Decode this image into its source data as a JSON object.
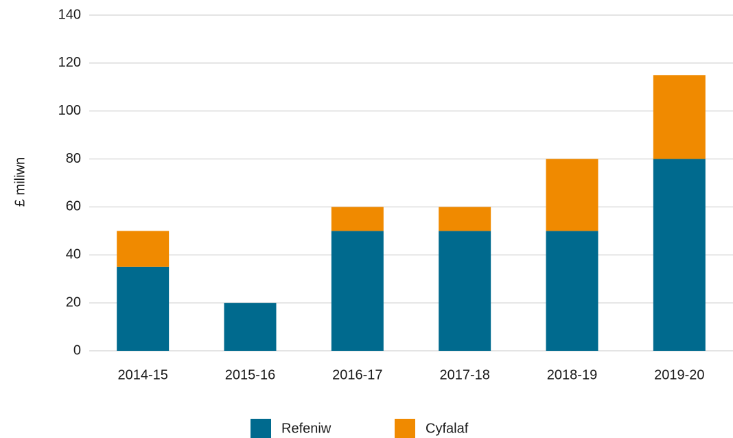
{
  "chart_data": {
    "type": "stacked_bar",
    "y_label": "£ miliwn",
    "categories": [
      "2014-15",
      "2015-16",
      "2016-17",
      "2017-18",
      "2018-19",
      "2019-20"
    ],
    "series": [
      {
        "name": "Refeniw",
        "color": "#006a8e",
        "values": [
          35,
          20,
          50,
          50,
          50,
          80
        ]
      },
      {
        "name": "Cyfalaf",
        "color": "#f08a00",
        "values": [
          15,
          0,
          10,
          10,
          30,
          35
        ]
      }
    ],
    "ylim": [
      0,
      140
    ],
    "yticks": [
      0,
      20,
      40,
      60,
      80,
      100,
      120,
      140
    ],
    "grid": true,
    "legend": "bottom"
  }
}
